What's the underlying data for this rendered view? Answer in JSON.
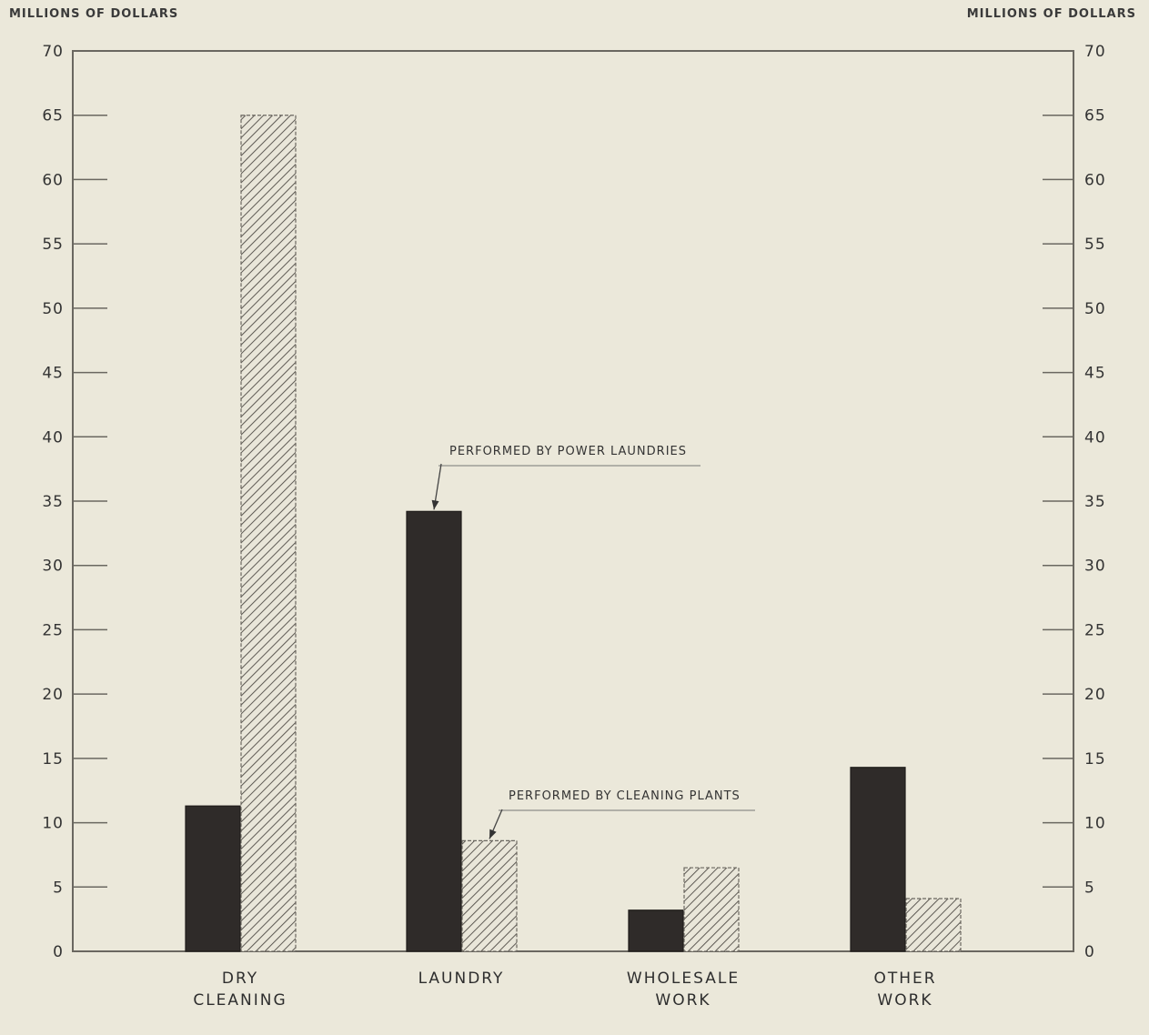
{
  "chart_data": {
    "type": "bar",
    "ylabel_left": "MILLIONS OF DOLLARS",
    "ylabel_right": "MILLIONS OF DOLLARS",
    "ylim": [
      0,
      70
    ],
    "yticks": [
      "0",
      "5",
      "10",
      "15",
      "20",
      "25",
      "30",
      "35",
      "40",
      "45",
      "50",
      "55",
      "60",
      "65",
      "70"
    ],
    "categories": [
      {
        "line1": "DRY",
        "line2": "CLEANING"
      },
      {
        "line1": "LAUNDRY",
        "line2": ""
      },
      {
        "line1": "WHOLESALE",
        "line2": "WORK"
      },
      {
        "line1": "OTHER",
        "line2": "WORK"
      }
    ],
    "series": [
      {
        "name": "PERFORMED BY POWER LAUNDRIES",
        "values": [
          11.3,
          34.2,
          3.2,
          14.3
        ],
        "color": "#2f2b29",
        "fill": "solid"
      },
      {
        "name": "PERFORMED BY CLEANING PLANTS",
        "values": [
          65,
          8.6,
          6.5,
          4.1
        ],
        "color": "#6b6760",
        "fill": "hatched"
      }
    ],
    "grid": false,
    "legend": "annotations"
  }
}
